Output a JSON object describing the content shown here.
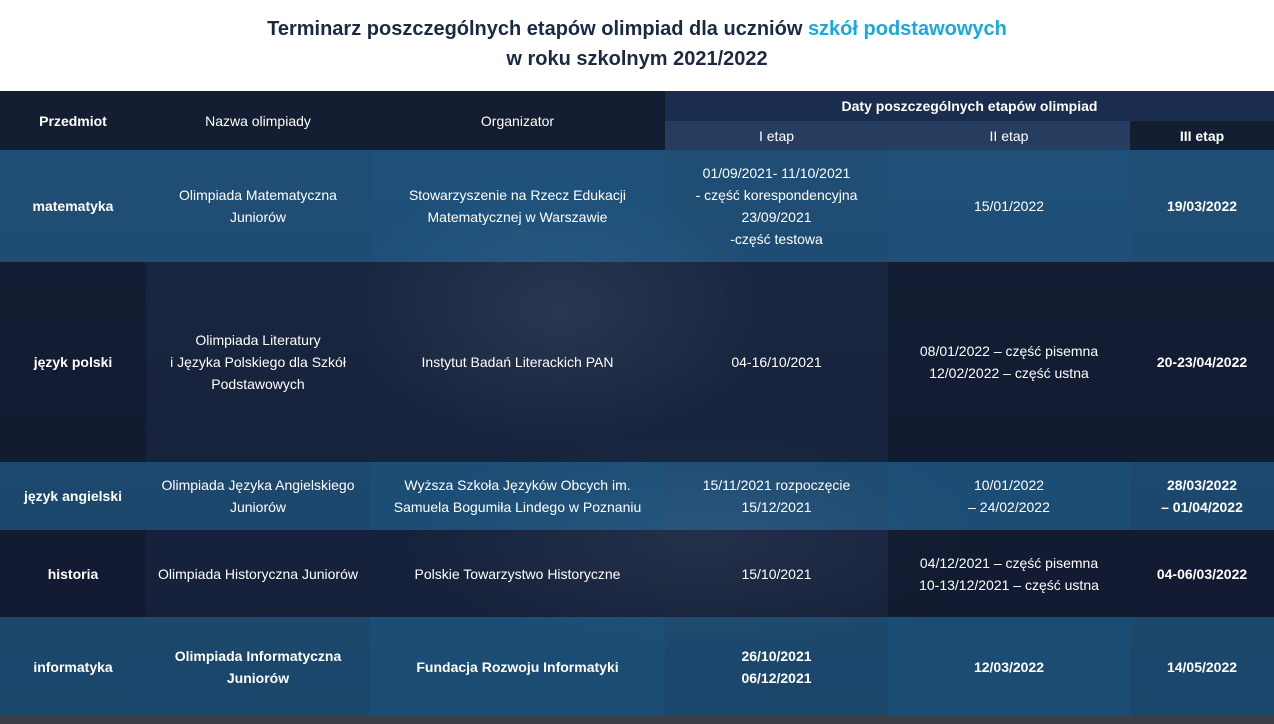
{
  "title": {
    "line1_prefix": "Terminarz poszczególnych etapów olimpiad dla uczniów ",
    "line1_accent": "szkół podstawowych",
    "line2": "w roku szkolnym 2021/2022",
    "accent_color": "#1aa8e0"
  },
  "header": {
    "subject": "Przedmiot",
    "olympiad": "Nazwa olimpiady",
    "organizer": "Organizator",
    "dates_group": "Daty poszczególnych etapów olimpiad",
    "stage1": "I etap",
    "stage2": "II etap",
    "stage3": "III etap"
  },
  "rows": [
    {
      "subject": "matematyka",
      "olympiad": "Olimpiada Matematyczna\nJuniorów",
      "organizer": "Stowarzyszenie na Rzecz Edukacji\nMatematycznej w Warszawie",
      "stage1": "01/09/2021- 11/10/2021\n- część korespondencyjna\n23/09/2021\n-część testowa",
      "stage2": "15/01/2022",
      "stage3": "19/03/2022"
    },
    {
      "subject": "język polski",
      "olympiad": "Olimpiada Literatury\ni Języka Polskiego dla Szkół\nPodstawowych",
      "organizer": "Instytut Badań Literackich PAN",
      "stage1": "04-16/10/2021",
      "stage2": "08/01/2022 – część pisemna\n12/02/2022 – część ustna",
      "stage3": "20-23/04/2022"
    },
    {
      "subject": "język angielski",
      "olympiad": "Olimpiada Języka Angielskiego\nJuniorów",
      "organizer": "Wyższa Szkoła Języków Obcych im.\nSamuela Bogumiła Lindego w Poznaniu",
      "stage1": "15/11/2021 rozpoczęcie\n15/12/2021",
      "stage2": "10/01/2022\n– 24/02/2022",
      "stage3": "28/03/2022\n– 01/04/2022"
    },
    {
      "subject": "historia",
      "olympiad": "Olimpiada Historyczna Juniorów",
      "organizer": "Polskie Towarzystwo Historyczne",
      "stage1": "15/10/2021",
      "stage2": "04/12/2021 – część pisemna\n10-13/12/2021 – część ustna",
      "stage3": "04-06/03/2022"
    },
    {
      "subject": "informatyka",
      "olympiad": "Olimpiada Informatyczna\nJuniorów",
      "organizer": "Fundacja Rozwoju Informatyki",
      "stage1": "26/10/2021\n06/12/2021",
      "stage2": "12/03/2022",
      "stage3": "14/05/2022"
    }
  ]
}
